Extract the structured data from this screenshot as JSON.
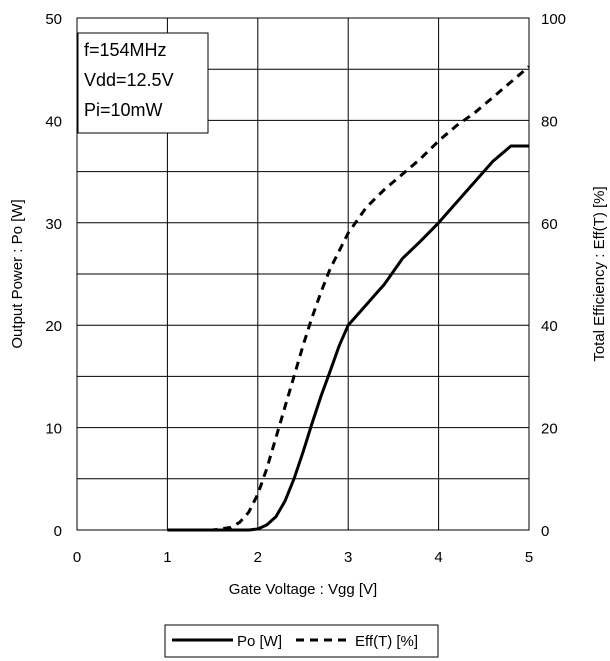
{
  "chart_data": {
    "type": "line",
    "xlabel": "Gate Voltage : Vgg [V]",
    "ylabel_left": "Output Power : Po [W]",
    "ylabel_right": "Total Efficiency : Eff(T) [%]",
    "xlim": [
      0,
      5
    ],
    "ylim_left": [
      0,
      50
    ],
    "ylim_right": [
      0,
      100
    ],
    "x_ticks": [
      "0",
      "1",
      "2",
      "3",
      "4",
      "5"
    ],
    "y_ticks_left": [
      "0",
      "10",
      "20",
      "30",
      "40",
      "50"
    ],
    "y_ticks_right": [
      "0",
      "20",
      "40",
      "60",
      "80",
      "100"
    ],
    "grid": true,
    "legend_position": "bottom-center",
    "annotation": [
      "f=154MHz",
      "Vdd=12.5V",
      "Pi=10mW"
    ],
    "series": [
      {
        "name": "Po [W]",
        "axis": "left",
        "style": "solid",
        "color": "#000000",
        "x": [
          1.0,
          1.5,
          1.9,
          2.0,
          2.1,
          2.2,
          2.3,
          2.4,
          2.5,
          2.6,
          2.7,
          2.8,
          2.9,
          3.0,
          3.2,
          3.4,
          3.6,
          3.8,
          4.0,
          4.2,
          4.4,
          4.6,
          4.8,
          5.0
        ],
        "y": [
          0,
          0,
          0,
          0.1,
          0.5,
          1.3,
          2.8,
          5.0,
          7.6,
          10.4,
          13.1,
          15.5,
          18.0,
          20.0,
          22.0,
          24.0,
          26.5,
          28.2,
          30.0,
          32.0,
          34.0,
          36.0,
          37.5,
          37.5
        ]
      },
      {
        "name": "Eff(T) [%]",
        "axis": "right",
        "style": "dashed",
        "color": "#000000",
        "x": [
          1.0,
          1.5,
          1.7,
          1.8,
          1.9,
          2.0,
          2.1,
          2.2,
          2.3,
          2.4,
          2.5,
          2.6,
          2.7,
          2.8,
          3.0,
          3.2,
          3.4,
          3.6,
          3.8,
          4.0,
          4.2,
          4.4,
          4.6,
          4.8,
          5.0
        ],
        "y": [
          0,
          0,
          0.5,
          1.5,
          3.5,
          7.0,
          12.0,
          18.0,
          24.0,
          30.0,
          36.0,
          41.5,
          46.5,
          51.0,
          58.0,
          63.0,
          66.5,
          69.5,
          72.5,
          76.0,
          79.0,
          81.5,
          84.5,
          87.5,
          90.5
        ]
      }
    ]
  }
}
